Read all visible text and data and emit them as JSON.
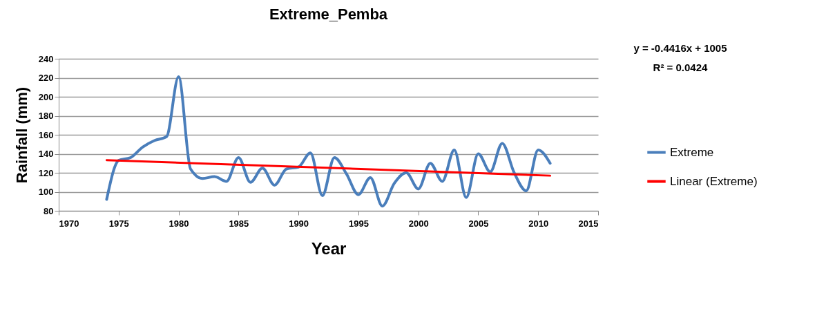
{
  "chart_data": {
    "type": "line",
    "title": "Extreme_Pemba",
    "xlabel": "Year",
    "ylabel": "Rainfall (mm)",
    "x": [
      1974,
      1975,
      1976,
      1977,
      1978,
      1979,
      1980,
      1981,
      1982,
      1983,
      1984,
      1985,
      1986,
      1987,
      1988,
      1989,
      1990,
      1991,
      1992,
      1993,
      1994,
      1995,
      1996,
      1997,
      1998,
      1999,
      2000,
      2001,
      2002,
      2003,
      2004,
      2005,
      2006,
      2007,
      2008,
      2009,
      2010,
      2011
    ],
    "series": [
      {
        "name": "Extreme",
        "color": "#4a7ebb",
        "values": [
          92,
          133,
          136,
          147,
          154,
          158,
          221,
          124,
          114,
          116,
          111,
          136,
          110,
          125,
          107,
          124,
          126,
          141,
          96,
          136,
          119,
          97,
          115,
          85,
          109,
          120,
          103,
          130,
          111,
          144,
          94,
          140,
          121,
          151,
          120,
          101,
          144,
          130
        ]
      },
      {
        "name": "Linear (Extreme)",
        "type": "line",
        "color": "#ff0000",
        "x": [
          1974,
          2011
        ],
        "values": [
          133.3,
          117.0
        ]
      }
    ],
    "xlim": [
      1970,
      2015
    ],
    "xticks": [
      1970,
      1975,
      1980,
      1985,
      1990,
      1995,
      2000,
      2005,
      2010,
      2015
    ],
    "ylim": [
      80,
      240
    ],
    "yticks": [
      80,
      100,
      120,
      140,
      160,
      180,
      200,
      220,
      240
    ],
    "grid": "y",
    "legend": "right",
    "marker": "none",
    "line_style": "solid",
    "annotations": [
      "y = -0.4416x + 1005",
      "R² = 0.0424"
    ]
  }
}
